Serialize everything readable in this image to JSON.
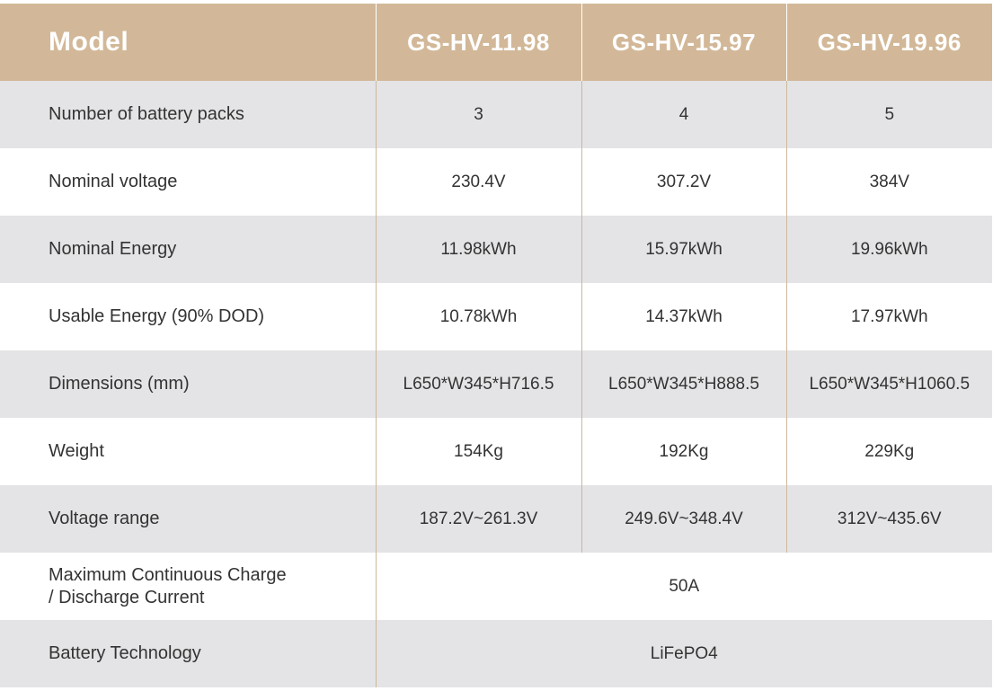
{
  "header": {
    "label": "Model",
    "models": [
      "GS-HV-11.98",
      "GS-HV-15.97",
      "GS-HV-19.96"
    ]
  },
  "rows": [
    {
      "label": "Number of battery packs",
      "values": [
        "3",
        "4",
        "5"
      ]
    },
    {
      "label": "Nominal voltage",
      "values": [
        "230.4V",
        "307.2V",
        "384V"
      ]
    },
    {
      "label": "Nominal Energy",
      "values": [
        "11.98kWh",
        "15.97kWh",
        "19.96kWh"
      ]
    },
    {
      "label": "Usable Energy (90% DOD)",
      "values": [
        "10.78kWh",
        "14.37kWh",
        "17.97kWh"
      ]
    },
    {
      "label": "Dimensions (mm)",
      "values": [
        "L650*W345*H716.5",
        "L650*W345*H888.5",
        "L650*W345*H1060.5"
      ]
    },
    {
      "label": "Weight",
      "values": [
        "154Kg",
        "192Kg",
        "229Kg"
      ]
    },
    {
      "label": "Voltage range",
      "values": [
        "187.2V~261.3V",
        "249.6V~348.4V",
        "312V~435.6V"
      ]
    }
  ],
  "shared_rows": [
    {
      "label_line1": "Maximum Continuous Charge",
      "label_line2": "/ Discharge Current",
      "value": "50A"
    },
    {
      "label": "Battery Technology",
      "value": "LiFePO4"
    }
  ],
  "colors": {
    "header_bg": "#d2b898",
    "header_text": "#ffffff",
    "row_shade": "#e4e4e6",
    "row_plain": "#ffffff",
    "divider": "#cdb79b",
    "text": "#333333"
  }
}
